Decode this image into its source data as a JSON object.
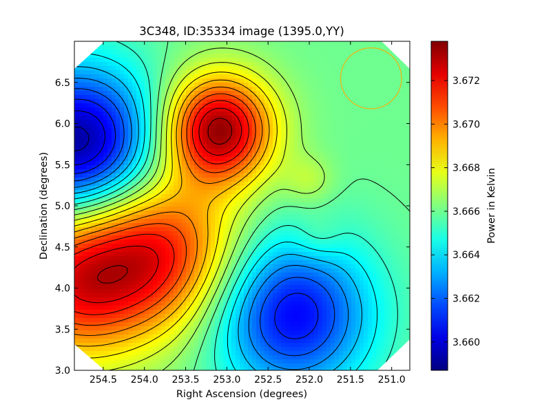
{
  "chart_data": {
    "type": "heatmap",
    "subtype": "contour-map",
    "title": "3C348, ID:35334 image (1395.0,YY)",
    "xlabel": "Right Ascension (degrees)",
    "ylabel": "Declination (degrees)",
    "colorbar_label": "Power in Kelvin",
    "xlim": [
      254.85,
      250.78
    ],
    "ylim": [
      3.0,
      7.0
    ],
    "x_ticks": [
      254.5,
      254.0,
      253.5,
      253.0,
      252.5,
      252.0,
      251.5,
      251.0
    ],
    "x_tick_labels": [
      "254.5",
      "254.0",
      "253.5",
      "253.0",
      "252.5",
      "252.0",
      "251.5",
      "251.0"
    ],
    "y_ticks": [
      3.0,
      3.5,
      4.0,
      4.5,
      5.0,
      5.5,
      6.0,
      6.5
    ],
    "y_tick_labels": [
      "3.0",
      "3.5",
      "4.0",
      "4.5",
      "5.0",
      "5.5",
      "6.0",
      "6.5"
    ],
    "colorbar_range": [
      3.6587,
      3.6738
    ],
    "colorbar_ticks": [
      3.66,
      3.662,
      3.664,
      3.666,
      3.668,
      3.67,
      3.672
    ],
    "colorbar_tick_labels": [
      "3.660",
      "3.662",
      "3.664",
      "3.666",
      "3.668",
      "3.670",
      "3.672"
    ],
    "colormap": "jet",
    "contour_color": "#000000",
    "features": [
      {
        "kind": "max",
        "ra": 253.1,
        "dec": 5.93,
        "value": 3.6735
      },
      {
        "kind": "min",
        "ra": 254.8,
        "dec": 5.72,
        "value": 3.6588
      },
      {
        "kind": "min",
        "ra": 252.2,
        "dec": 3.68,
        "value": 3.6605
      },
      {
        "kind": "max",
        "ra": 253.8,
        "dec": 4.45,
        "value": 3.6712
      },
      {
        "kind": "max",
        "ra": 254.85,
        "dec": 4.1,
        "value": 3.6716
      },
      {
        "kind": "local",
        "ra": 251.9,
        "dec": 4.6,
        "value": 3.6669
      },
      {
        "kind": "local",
        "ra": 252.0,
        "dec": 5.3,
        "value": 3.6672
      }
    ],
    "beam_circle": {
      "ra": 251.25,
      "dec": 6.55,
      "radius_deg": 0.37,
      "color": "#e8b515"
    }
  }
}
